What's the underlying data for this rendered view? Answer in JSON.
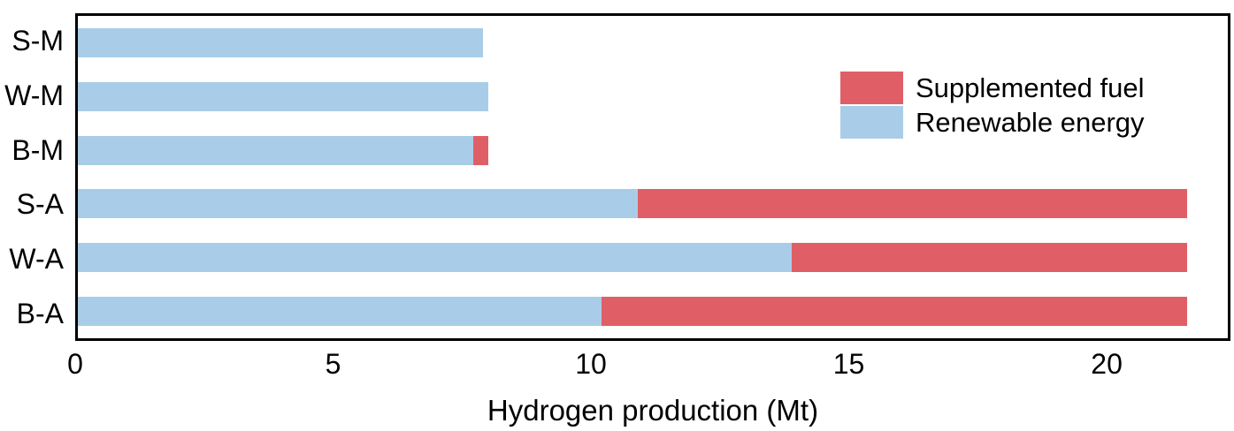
{
  "chart_data": {
    "type": "bar",
    "orientation": "horizontal",
    "stacked": true,
    "title": "",
    "xlabel": "Hydrogen production (Mt)",
    "ylabel": "",
    "categories": [
      "S-M",
      "W-M",
      "B-M",
      "S-A",
      "W-A",
      "B-A"
    ],
    "series": [
      {
        "name": "Renewable energy",
        "color": "#a9cde8",
        "values": [
          7.9,
          8.0,
          7.7,
          10.9,
          13.9,
          10.2
        ]
      },
      {
        "name": "Supplemented fuel",
        "color": "#e05f66",
        "values": [
          0,
          0,
          0.3,
          10.7,
          7.7,
          11.4
        ]
      }
    ],
    "totals": [
      7.9,
      8.0,
      8.0,
      21.6,
      21.6,
      21.6
    ],
    "x_ticks": [
      0,
      5,
      10,
      15,
      20
    ],
    "xlim": [
      0,
      22.4
    ],
    "grid": false,
    "legend": {
      "position": "top-right",
      "entries": [
        {
          "label": "Supplemented fuel",
          "color": "#e05f66"
        },
        {
          "label": "Renewable energy",
          "color": "#a9cde8"
        }
      ]
    }
  },
  "colors": {
    "background": "#ffffff",
    "frame": "#000000",
    "text": "#000000",
    "renewable_energy": "#a9cde8",
    "supplemented_fuel": "#e05f66"
  }
}
